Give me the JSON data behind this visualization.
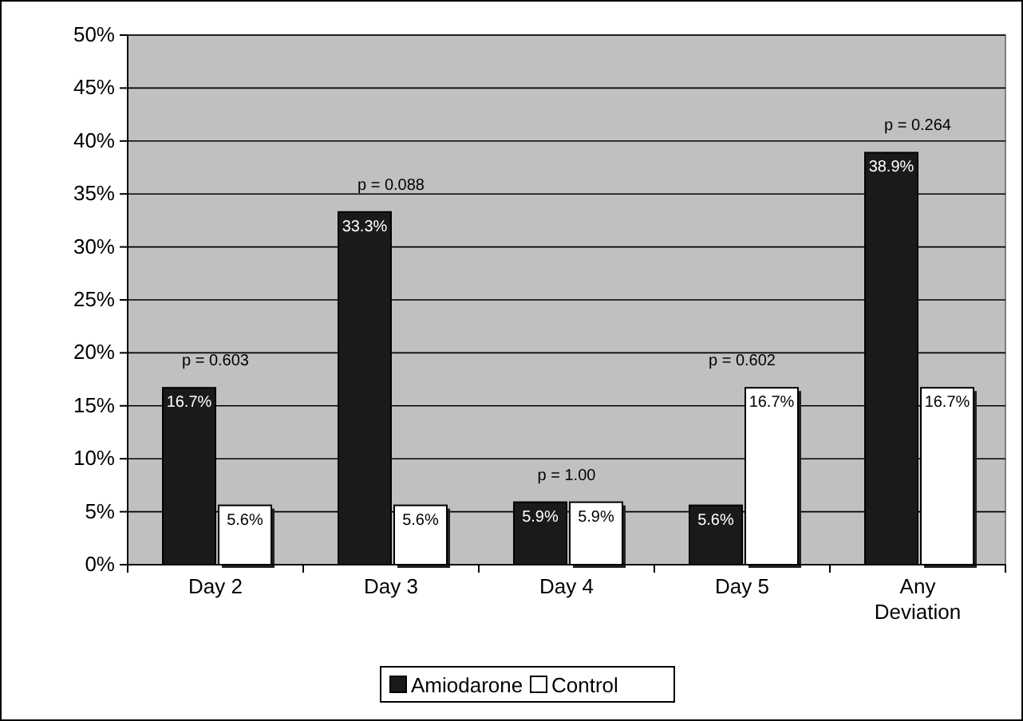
{
  "chart_data": {
    "type": "bar",
    "categories": [
      "Day 2",
      "Day 3",
      "Day 4",
      "Day 5",
      "Any Deviation"
    ],
    "series": [
      {
        "name": "Amiodarone",
        "color": "#1a1a1a",
        "values": [
          16.7,
          33.3,
          5.9,
          5.6,
          38.9
        ],
        "value_labels": [
          "16.7%",
          "33.3%",
          "5.9%",
          "5.6%",
          "38.9%"
        ]
      },
      {
        "name": "Control",
        "color": "#ffffff",
        "values": [
          5.6,
          5.6,
          5.9,
          16.7,
          16.7
        ],
        "value_labels": [
          "5.6%",
          "5.6%",
          "5.9%",
          "16.7%",
          "16.7%"
        ]
      }
    ],
    "ylim": [
      0,
      50
    ],
    "yticks": [
      {
        "value": 0,
        "label": "0%"
      },
      {
        "value": 5,
        "label": "5%"
      },
      {
        "value": 10,
        "label": "10%"
      },
      {
        "value": 15,
        "label": "15%"
      },
      {
        "value": 20,
        "label": "20%"
      },
      {
        "value": 25,
        "label": "25%"
      },
      {
        "value": 30,
        "label": "30%"
      },
      {
        "value": 35,
        "label": "35%"
      },
      {
        "value": 40,
        "label": "40%"
      },
      {
        "value": 45,
        "label": "45%"
      },
      {
        "value": 50,
        "label": "50%"
      }
    ],
    "grid": "y",
    "legend": "bottom",
    "annotations": [
      "p = 0.603",
      "p = 0.088",
      "p = 1.00",
      "p = 0.602",
      "p = 0.264"
    ]
  }
}
